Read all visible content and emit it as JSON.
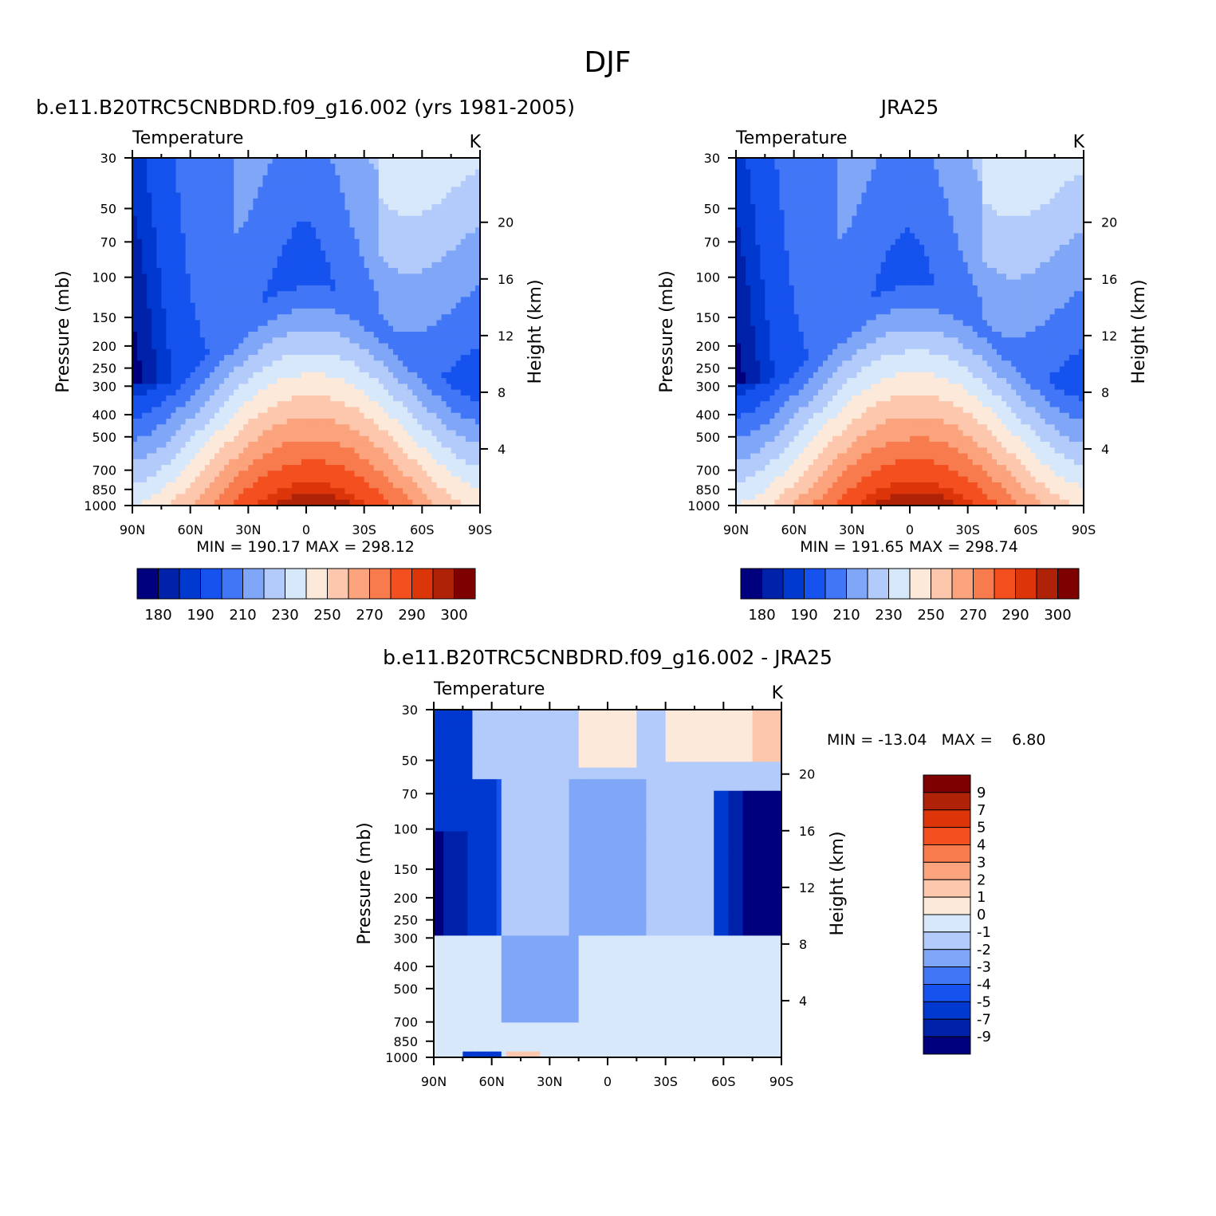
{
  "page_title": "DJF",
  "palette": [
    "#00007f",
    "#0022aa",
    "#0039cf",
    "#1552ee",
    "#4176f7",
    "#80a6f7",
    "#b3cbfa",
    "#d8e8fb",
    "#fde9d9",
    "#fcc7ac",
    "#fba37d",
    "#f87b4e",
    "#f34f1f",
    "#dd350a",
    "#b02208",
    "#7f0000"
  ],
  "diff_palette": [
    "#00007f",
    "#0022aa",
    "#0039cf",
    "#1552ee",
    "#4176f7",
    "#80a6f7",
    "#b3cbfa",
    "#d8e8fb",
    "#fde9d9",
    "#fcc7ac",
    "#fba37d",
    "#f87b4e",
    "#f34f1f",
    "#dd350a",
    "#b02208",
    "#7f0000"
  ],
  "chart_data": [
    {
      "type": "heatmap",
      "panel": "model",
      "title": "b.e11.B20TRC5CNBDRD.f09_g16.002 (yrs 1981-2005)",
      "variable": "Temperature",
      "units": "K",
      "stats": "MIN =  190.17   MAX =  298.12",
      "x_ticks": [
        "90N",
        "60N",
        "30N",
        "0",
        "30S",
        "60S",
        "90S"
      ],
      "y_ticks": [
        "30",
        "50",
        "70",
        "100",
        "150",
        "200",
        "250",
        "300",
        "400",
        "500",
        "700",
        "850",
        "1000"
      ],
      "y2_ticks": [
        "20",
        "16",
        "12",
        "8",
        "4"
      ],
      "ylabel": "Pressure  (mb)",
      "ylabel_right": "Height  (km)",
      "colorbar_labels": [
        "180",
        "190",
        "210",
        "230",
        "250",
        "270",
        "290",
        "300"
      ],
      "scale": "log-pressure",
      "ylim": [
        1000,
        30
      ]
    },
    {
      "type": "heatmap",
      "panel": "obs",
      "title": "JRA25",
      "variable": "Temperature",
      "units": "K",
      "stats": "MIN =  191.65   MAX =  298.74",
      "x_ticks": [
        "90N",
        "60N",
        "30N",
        "0",
        "30S",
        "60S",
        "90S"
      ],
      "y_ticks": [
        "30",
        "50",
        "70",
        "100",
        "150",
        "200",
        "250",
        "300",
        "400",
        "500",
        "700",
        "850",
        "1000"
      ],
      "y2_ticks": [
        "20",
        "16",
        "12",
        "8",
        "4"
      ],
      "ylabel": "Pressure  (mb)",
      "ylabel_right": "Height  (km)",
      "colorbar_labels": [
        "180",
        "190",
        "210",
        "230",
        "250",
        "270",
        "290",
        "300"
      ],
      "scale": "log-pressure",
      "ylim": [
        1000,
        30
      ]
    },
    {
      "type": "heatmap",
      "panel": "difference",
      "title": "b.e11.B20TRC5CNBDRD.f09_g16.002 - JRA25",
      "variable": "Temperature",
      "units": "K",
      "stats": "MIN = -13.04   MAX =    6.80",
      "x_ticks": [
        "90N",
        "60N",
        "30N",
        "0",
        "30S",
        "60S",
        "90S"
      ],
      "y_ticks": [
        "30",
        "50",
        "70",
        "100",
        "150",
        "200",
        "250",
        "300",
        "400",
        "500",
        "700",
        "850",
        "1000"
      ],
      "y2_ticks": [
        "20",
        "16",
        "12",
        "8",
        "4"
      ],
      "ylabel": "Pressure  (mb)",
      "ylabel_right": "Height  (km)",
      "colorbar_labels": [
        "9",
        "7",
        "5",
        "4",
        "3",
        "2",
        "1",
        "0",
        "-1",
        "-2",
        "-3",
        "-4",
        "-5",
        "-7",
        "-9"
      ],
      "scale": "log-pressure",
      "ylim": [
        1000,
        30
      ]
    }
  ]
}
